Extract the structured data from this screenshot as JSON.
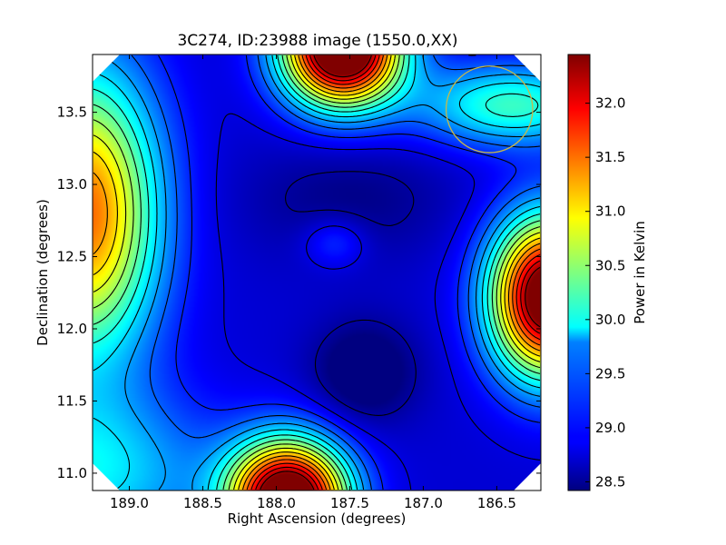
{
  "chart_data": {
    "type": "heatmap",
    "title": "3C274, ID:23988 image (1550.0,XX)",
    "xlabel": "Right Ascension (degrees)",
    "ylabel": "Declination (degrees)",
    "colorbar_label": "Power in Kelvin",
    "xlim": [
      189.25,
      186.2
    ],
    "ylim": [
      10.88,
      13.9
    ],
    "clim": [
      28.42,
      32.45
    ],
    "x_inverted": true,
    "colormap": "jet",
    "contours": true,
    "x_ticks": [
      {
        "value": 189.0,
        "label": "189.0"
      },
      {
        "value": 188.5,
        "label": "188.5"
      },
      {
        "value": 188.0,
        "label": "188.0"
      },
      {
        "value": 187.5,
        "label": "187.5"
      },
      {
        "value": 187.0,
        "label": "187.0"
      },
      {
        "value": 186.5,
        "label": "186.5"
      }
    ],
    "y_ticks": [
      {
        "value": 11.0,
        "label": "11.0"
      },
      {
        "value": 11.5,
        "label": "11.5"
      },
      {
        "value": 12.0,
        "label": "12.0"
      },
      {
        "value": 12.5,
        "label": "12.5"
      },
      {
        "value": 13.0,
        "label": "13.0"
      },
      {
        "value": 13.5,
        "label": "13.5"
      }
    ],
    "colorbar_ticks": [
      {
        "value": 28.5,
        "label": "28.5"
      },
      {
        "value": 29.0,
        "label": "29.0"
      },
      {
        "value": 29.5,
        "label": "29.5"
      },
      {
        "value": 30.0,
        "label": "30.0"
      },
      {
        "value": 30.5,
        "label": "30.5"
      },
      {
        "value": 31.0,
        "label": "31.0"
      },
      {
        "value": 31.5,
        "label": "31.5"
      },
      {
        "value": 32.0,
        "label": "32.0"
      }
    ],
    "field_sources": [
      {
        "ra": 187.55,
        "dec": 13.95,
        "amplitude": 4.6,
        "sigma_ra": 0.28,
        "sigma_dec": 0.28
      },
      {
        "ra": 187.92,
        "dec": 10.82,
        "amplitude": 4.4,
        "sigma_ra": 0.28,
        "sigma_dec": 0.28
      },
      {
        "ra": 186.15,
        "dec": 12.22,
        "amplitude": 4.2,
        "sigma_ra": 0.27,
        "sigma_dec": 0.38
      },
      {
        "ra": 189.3,
        "dec": 12.8,
        "amplitude": 2.8,
        "sigma_ra": 0.35,
        "sigma_dec": 0.7
      },
      {
        "ra": 186.4,
        "dec": 13.55,
        "amplitude": 1.4,
        "sigma_ra": 0.45,
        "sigma_dec": 0.2
      },
      {
        "ra": 189.3,
        "dec": 11.0,
        "amplitude": 1.1,
        "sigma_ra": 0.6,
        "sigma_dec": 0.4
      },
      {
        "ra": 187.6,
        "dec": 12.6,
        "amplitude": 0.45,
        "sigma_ra": 0.15,
        "sigma_dec": 0.12
      },
      {
        "ra": 187.4,
        "dec": 11.7,
        "amplitude": -0.55,
        "sigma_ra": 0.25,
        "sigma_dec": 0.25
      },
      {
        "ra": 187.5,
        "dec": 12.9,
        "amplitude": -0.3,
        "sigma_ra": 0.5,
        "sigma_dec": 0.3
      }
    ],
    "field_baseline": 28.75,
    "annotations": [
      {
        "type": "circle",
        "ra": 186.55,
        "dec": 13.52,
        "radius_deg": 0.3,
        "color": "#c8b84a"
      }
    ]
  }
}
